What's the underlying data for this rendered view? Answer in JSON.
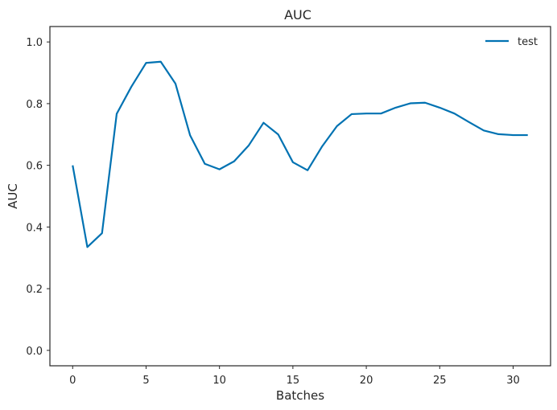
{
  "chart_data": {
    "type": "line",
    "title": "AUC",
    "xlabel": "Batches",
    "ylabel": "AUC",
    "xlim": [
      -1.55,
      32.55
    ],
    "ylim": [
      -0.05,
      1.05
    ],
    "xticks": [
      0,
      5,
      10,
      15,
      20,
      25,
      30
    ],
    "xtick_labels": [
      "0",
      "5",
      "10",
      "15",
      "20",
      "25",
      "30"
    ],
    "yticks": [
      0.0,
      0.2,
      0.4,
      0.6,
      0.8,
      1.0
    ],
    "ytick_labels": [
      "0.0",
      "0.2",
      "0.4",
      "0.6",
      "0.8",
      "1.0"
    ],
    "grid": false,
    "legend_position": "top-right",
    "x": [
      0,
      1,
      2,
      3,
      4,
      5,
      6,
      7,
      8,
      9,
      10,
      11,
      12,
      13,
      14,
      15,
      16,
      17,
      18,
      19,
      20,
      21,
      22,
      23,
      24,
      25,
      26,
      27,
      28,
      29,
      30,
      31
    ],
    "series": [
      {
        "name": "test",
        "color": "#0072B2",
        "values": [
          0.6,
          0.335,
          0.38,
          0.767,
          0.855,
          0.932,
          0.936,
          0.865,
          0.697,
          0.605,
          0.587,
          0.613,
          0.665,
          0.738,
          0.7,
          0.61,
          0.584,
          0.662,
          0.727,
          0.766,
          0.768,
          0.768,
          0.787,
          0.801,
          0.803,
          0.787,
          0.768,
          0.74,
          0.713,
          0.701,
          0.698,
          0.698
        ]
      }
    ]
  }
}
